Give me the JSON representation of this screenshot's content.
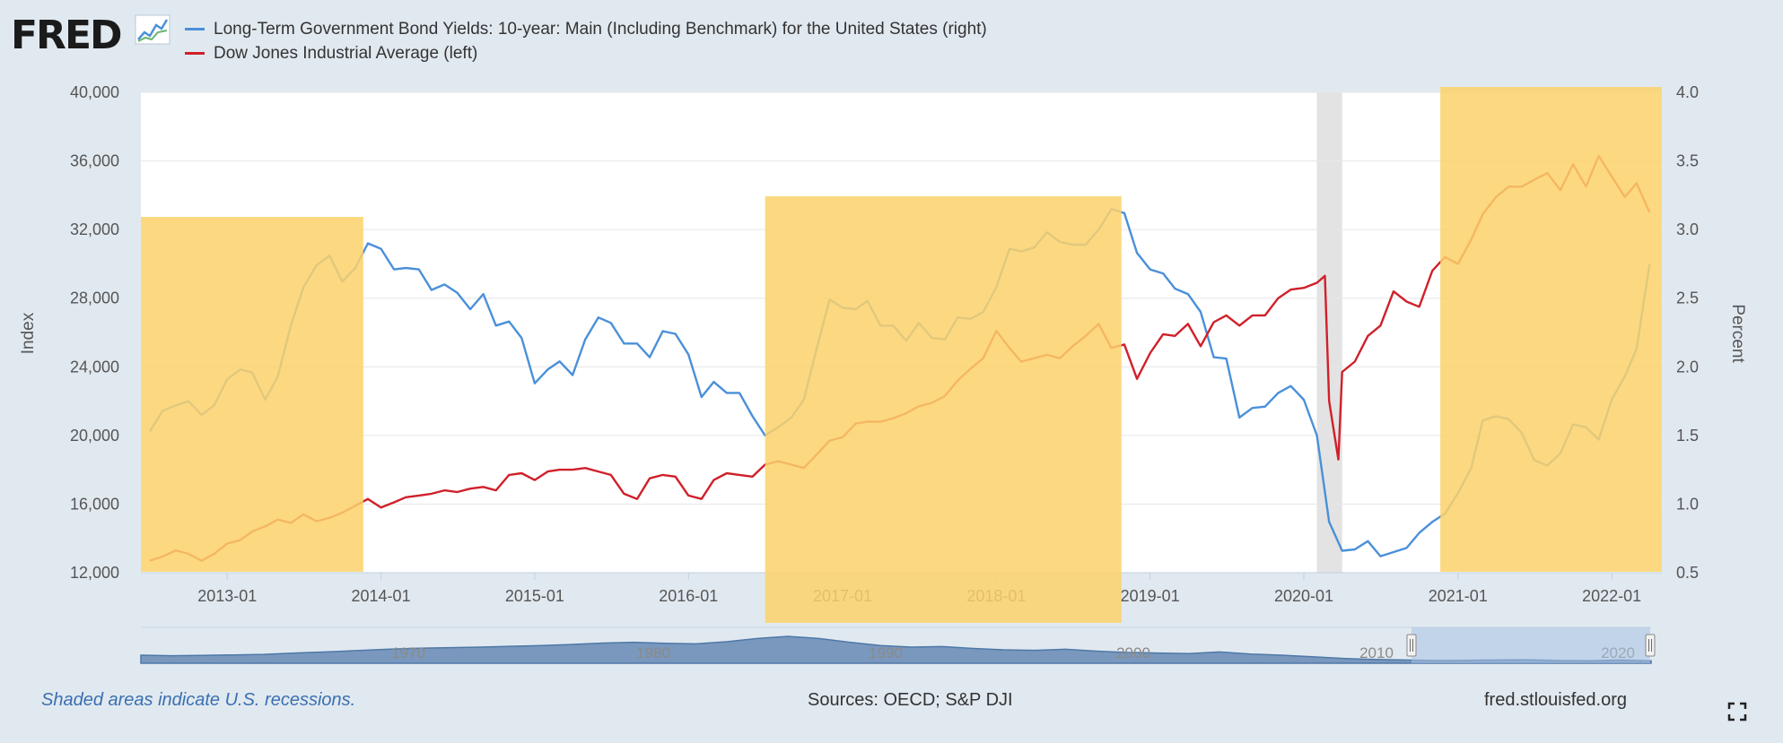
{
  "header": {
    "brand": "FRED"
  },
  "chart_data": {
    "type": "line",
    "series": [
      {
        "name": "Long-Term Government Bond Yields: 10-year: Main (Including Benchmark) for the United States (right)",
        "axis": "right",
        "color": "#4a90d9",
        "x": [
          "2012-07-01",
          "2012-08-01",
          "2012-09-01",
          "2012-10-01",
          "2012-11-01",
          "2012-12-01",
          "2013-01-01",
          "2013-02-01",
          "2013-03-01",
          "2013-04-01",
          "2013-05-01",
          "2013-06-01",
          "2013-07-01",
          "2013-08-01",
          "2013-09-01",
          "2013-10-01",
          "2013-11-01",
          "2013-12-01",
          "2014-01-01",
          "2014-02-01",
          "2014-03-01",
          "2014-04-01",
          "2014-05-01",
          "2014-06-01",
          "2014-07-01",
          "2014-08-01",
          "2014-09-01",
          "2014-10-01",
          "2014-11-01",
          "2014-12-01",
          "2015-01-01",
          "2015-02-01",
          "2015-03-01",
          "2015-04-01",
          "2015-05-01",
          "2015-06-01",
          "2015-07-01",
          "2015-08-01",
          "2015-09-01",
          "2015-10-01",
          "2015-11-01",
          "2015-12-01",
          "2016-01-01",
          "2016-02-01",
          "2016-03-01",
          "2016-04-01",
          "2016-05-01",
          "2016-06-01",
          "2016-07-01",
          "2016-08-01",
          "2016-09-01",
          "2016-10-01",
          "2016-11-01",
          "2016-12-01",
          "2017-01-01",
          "2017-02-01",
          "2017-03-01",
          "2017-04-01",
          "2017-05-01",
          "2017-06-01",
          "2017-07-01",
          "2017-08-01",
          "2017-09-01",
          "2017-10-01",
          "2017-11-01",
          "2017-12-01",
          "2018-01-01",
          "2018-02-01",
          "2018-03-01",
          "2018-04-01",
          "2018-05-01",
          "2018-06-01",
          "2018-07-01",
          "2018-08-01",
          "2018-09-01",
          "2018-10-01",
          "2018-11-01",
          "2018-12-01",
          "2019-01-01",
          "2019-02-01",
          "2019-03-01",
          "2019-04-01",
          "2019-05-01",
          "2019-06-01",
          "2019-07-01",
          "2019-08-01",
          "2019-09-01",
          "2019-10-01",
          "2019-11-01",
          "2019-12-01",
          "2020-01-01",
          "2020-02-01",
          "2020-03-01",
          "2020-04-01",
          "2020-05-01",
          "2020-06-01",
          "2020-07-01",
          "2020-08-01",
          "2020-09-01",
          "2020-10-01",
          "2020-11-01",
          "2020-12-01",
          "2021-01-01",
          "2021-02-01",
          "2021-03-01",
          "2021-04-01",
          "2021-05-01",
          "2021-06-01",
          "2021-07-01",
          "2021-08-01",
          "2021-09-01",
          "2021-10-01",
          "2021-11-01",
          "2021-12-01",
          "2022-01-01",
          "2022-02-01",
          "2022-03-01",
          "2022-04-01"
        ],
        "y": [
          1.53,
          1.68,
          1.72,
          1.75,
          1.65,
          1.72,
          1.91,
          1.98,
          1.96,
          1.76,
          1.93,
          2.3,
          2.58,
          2.74,
          2.81,
          2.62,
          2.72,
          2.9,
          2.86,
          2.71,
          2.72,
          2.71,
          2.56,
          2.6,
          2.54,
          2.42,
          2.53,
          2.3,
          2.33,
          2.21,
          1.88,
          1.98,
          2.04,
          1.94,
          2.2,
          2.36,
          2.32,
          2.17,
          2.17,
          2.07,
          2.26,
          2.24,
          2.09,
          1.78,
          1.89,
          1.81,
          1.81,
          1.64,
          1.5,
          1.56,
          1.63,
          1.76,
          2.14,
          2.49,
          2.43,
          2.42,
          2.48,
          2.3,
          2.3,
          2.19,
          2.32,
          2.21,
          2.2,
          2.36,
          2.35,
          2.4,
          2.58,
          2.86,
          2.84,
          2.87,
          2.98,
          2.91,
          2.89,
          2.89,
          3.0,
          3.15,
          3.12,
          2.83,
          2.71,
          2.68,
          2.57,
          2.53,
          2.4,
          2.07,
          2.06,
          1.63,
          1.7,
          1.71,
          1.81,
          1.86,
          1.76,
          1.5,
          0.87,
          0.66,
          0.67,
          0.73,
          0.62,
          0.65,
          0.68,
          0.79,
          0.87,
          0.93,
          1.08,
          1.26,
          1.61,
          1.64,
          1.62,
          1.52,
          1.32,
          1.28,
          1.37,
          1.58,
          1.56,
          1.47,
          1.76,
          1.93,
          2.13,
          2.75
        ]
      },
      {
        "name": "Dow Jones Industrial Average (left)",
        "axis": "left",
        "color": "#d0202a",
        "x": [
          "2012-07-01",
          "2012-08-01",
          "2012-09-01",
          "2012-10-01",
          "2012-11-01",
          "2012-12-01",
          "2013-01-01",
          "2013-02-01",
          "2013-03-01",
          "2013-04-01",
          "2013-05-01",
          "2013-06-01",
          "2013-07-01",
          "2013-08-01",
          "2013-09-01",
          "2013-10-01",
          "2013-11-01",
          "2013-12-01",
          "2014-01-01",
          "2014-02-01",
          "2014-03-01",
          "2014-04-01",
          "2014-05-01",
          "2014-06-01",
          "2014-07-01",
          "2014-08-01",
          "2014-09-01",
          "2014-10-01",
          "2014-11-01",
          "2014-12-01",
          "2015-01-01",
          "2015-02-01",
          "2015-03-01",
          "2015-04-01",
          "2015-05-01",
          "2015-06-01",
          "2015-07-01",
          "2015-08-01",
          "2015-09-01",
          "2015-10-01",
          "2015-11-01",
          "2015-12-01",
          "2016-01-01",
          "2016-02-01",
          "2016-03-01",
          "2016-04-01",
          "2016-05-01",
          "2016-06-01",
          "2016-07-01",
          "2016-08-01",
          "2016-09-01",
          "2016-10-01",
          "2016-11-01",
          "2016-12-01",
          "2017-01-01",
          "2017-02-01",
          "2017-03-01",
          "2017-04-01",
          "2017-05-01",
          "2017-06-01",
          "2017-07-01",
          "2017-08-01",
          "2017-09-01",
          "2017-10-01",
          "2017-11-01",
          "2017-12-01",
          "2018-01-01",
          "2018-02-01",
          "2018-03-01",
          "2018-04-01",
          "2018-05-01",
          "2018-06-01",
          "2018-07-01",
          "2018-08-01",
          "2018-09-01",
          "2018-10-01",
          "2018-11-01",
          "2018-12-01",
          "2019-01-01",
          "2019-02-01",
          "2019-03-01",
          "2019-04-01",
          "2019-05-01",
          "2019-06-01",
          "2019-07-01",
          "2019-08-01",
          "2019-09-01",
          "2019-10-01",
          "2019-11-01",
          "2019-12-01",
          "2020-01-01",
          "2020-02-01",
          "2020-02-20",
          "2020-03-01",
          "2020-03-23",
          "2020-04-01",
          "2020-05-01",
          "2020-06-01",
          "2020-07-01",
          "2020-08-01",
          "2020-09-01",
          "2020-10-01",
          "2020-11-01",
          "2020-12-01",
          "2021-01-01",
          "2021-02-01",
          "2021-03-01",
          "2021-04-01",
          "2021-05-01",
          "2021-06-01",
          "2021-07-01",
          "2021-08-01",
          "2021-09-01",
          "2021-10-01",
          "2021-11-01",
          "2021-12-01",
          "2022-01-01",
          "2022-02-01",
          "2022-03-01",
          "2022-04-01"
        ],
        "y": [
          12700,
          12950,
          13300,
          13100,
          12700,
          13100,
          13700,
          13900,
          14400,
          14700,
          15100,
          14900,
          15400,
          15000,
          15200,
          15500,
          15900,
          16300,
          15800,
          16100,
          16400,
          16500,
          16600,
          16800,
          16700,
          16900,
          17000,
          16800,
          17700,
          17800,
          17400,
          17900,
          18000,
          18000,
          18100,
          17900,
          17700,
          16600,
          16300,
          17500,
          17700,
          17600,
          16500,
          16300,
          17400,
          17800,
          17700,
          17600,
          18300,
          18500,
          18300,
          18100,
          18900,
          19700,
          19900,
          20700,
          20800,
          20800,
          21000,
          21300,
          21700,
          21900,
          22300,
          23200,
          23900,
          24500,
          26100,
          25100,
          24300,
          24500,
          24700,
          24500,
          25200,
          25800,
          26500,
          25100,
          25300,
          23300,
          24800,
          25900,
          25800,
          26500,
          25200,
          26600,
          27000,
          26400,
          27000,
          27000,
          28000,
          28500,
          28600,
          28900,
          29300,
          22000,
          18600,
          23700,
          24300,
          25800,
          26400,
          28400,
          27800,
          27500,
          29600,
          30400,
          30000,
          31400,
          32900,
          33900,
          34500,
          34500,
          34900,
          35300,
          34300,
          35800,
          34500,
          36300,
          35100,
          33900,
          34700,
          33000
        ]
      }
    ],
    "xlim": [
      "2012-06-10",
      "2022-04-30"
    ],
    "xticks": [
      "2013-01",
      "2014-01",
      "2015-01",
      "2016-01",
      "2017-01",
      "2018-01",
      "2019-01",
      "2020-01",
      "2021-01",
      "2022-01"
    ],
    "ylabel_left": "Index",
    "ylim_left": [
      12000,
      40000
    ],
    "yticks_left": [
      "12,000",
      "16,000",
      "20,000",
      "24,000",
      "28,000",
      "32,000",
      "36,000",
      "40,000"
    ],
    "ylabel_right": "Percent",
    "ylim_right": [
      0.5,
      4.0
    ],
    "yticks_right": [
      "0.5",
      "1.0",
      "1.5",
      "2.0",
      "2.5",
      "3.0",
      "3.5",
      "4.0"
    ],
    "recessions": [
      {
        "start": "2020-02-01",
        "end": "2020-04-01"
      }
    ],
    "highlights": [
      {
        "start": "2012-06-10",
        "end": "2013-11-20",
        "color": "#fcd26b"
      },
      {
        "start": "2016-07-01",
        "end": "2018-10-25",
        "color": "#fcd26b"
      },
      {
        "start": "2020-11-20",
        "end": "2022-04-30",
        "color": "#fcd26b"
      }
    ],
    "grid": true,
    "navigator": {
      "labels": [
        "1970",
        "1980",
        "1990",
        "2000",
        "2010",
        "2020"
      ]
    }
  },
  "footer": {
    "recession_note": "Shaded areas indicate U.S. recessions.",
    "sources": "Sources: OECD; S&P DJI",
    "site": "fred.stlouisfed.org"
  }
}
